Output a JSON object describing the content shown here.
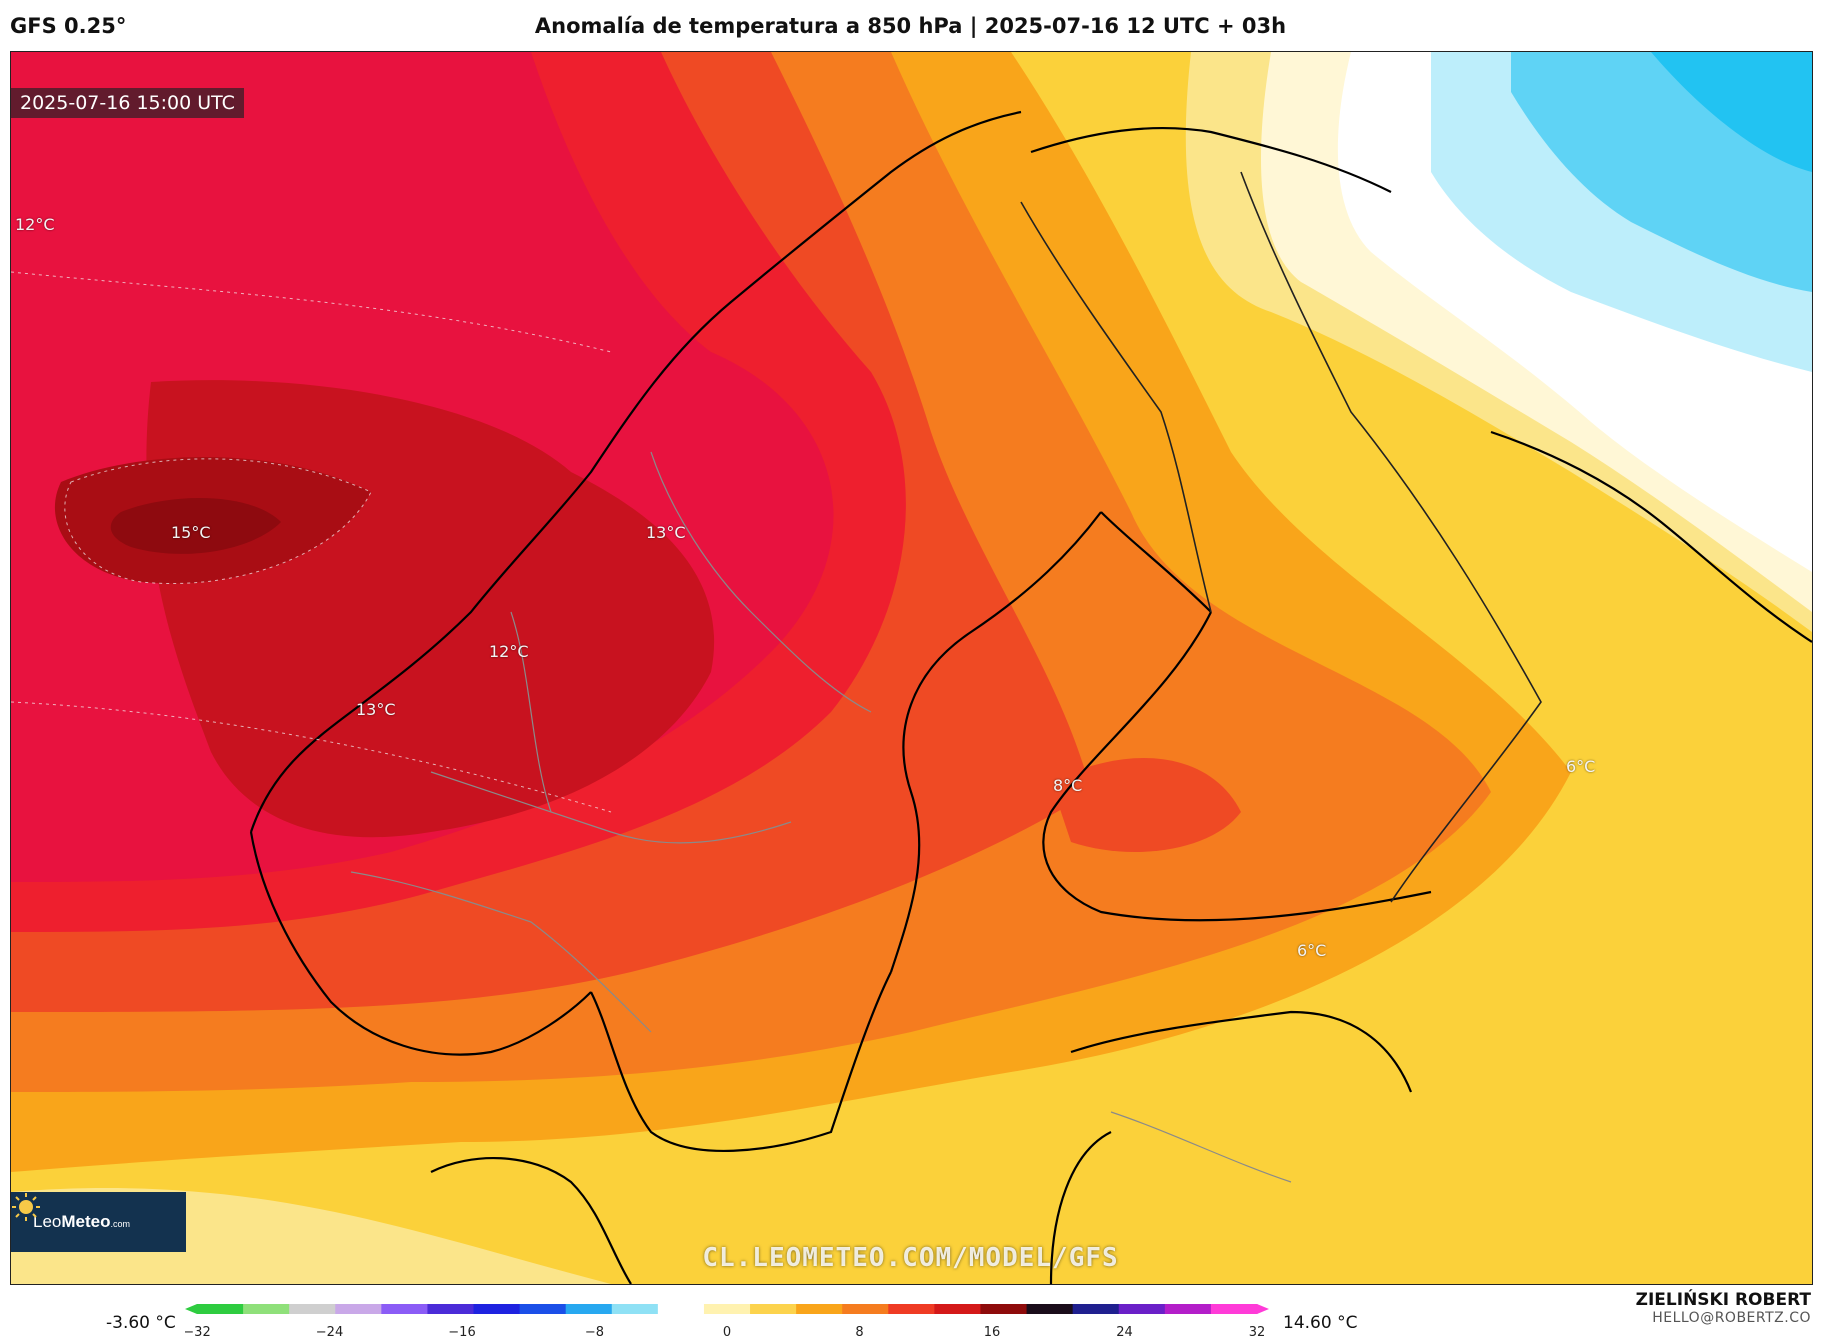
{
  "header": {
    "model": "GFS 0.25°",
    "title": "Anomalía de temperatura a 850 hPa | 2025-07-16 12 UTC + 03h"
  },
  "map": {
    "valid_time": "2025-07-16 15:00 UTC",
    "labels": [
      {
        "id": "label-12-west",
        "text": "12°C"
      },
      {
        "id": "label-15",
        "text": "15°C"
      },
      {
        "id": "label-13-north",
        "text": "13°C"
      },
      {
        "id": "label-12-coast",
        "text": "12°C"
      },
      {
        "id": "label-13-coast",
        "text": "13°C"
      },
      {
        "id": "label-8",
        "text": "8°C"
      },
      {
        "id": "label-6-east",
        "text": "6°C"
      },
      {
        "id": "label-6-south",
        "text": "6°C"
      }
    ],
    "watermark": "CL.LEOMETEO.COM/MODEL/GFS",
    "logo": {
      "brand_light": "Leo",
      "brand_bold": "Meteo",
      "suffix": ".com"
    }
  },
  "colorbar": {
    "min_label": "-3.60 °C",
    "max_label": "14.60 °C",
    "ticks": [
      "−32",
      "−24",
      "−16",
      "−8",
      "0",
      "8",
      "16",
      "24",
      "32"
    ],
    "tick_values": [
      -32,
      -24,
      -16,
      -8,
      0,
      8,
      16,
      24,
      32
    ],
    "range": [
      -32,
      32
    ],
    "colors": [
      "#2ecc40",
      "#8fe07a",
      "#cfcfcf",
      "#c9a8e8",
      "#8b5cf6",
      "#4b2bd8",
      "#1e22e0",
      "#1b4fe8",
      "#27a8f0",
      "#8fe1f5",
      "#ffffff",
      "#fff2b0",
      "#fcd34d",
      "#f9a51a",
      "#f57c1f",
      "#ef3b24",
      "#d41919",
      "#8e0b0b",
      "#1a0d1a",
      "#1f1f8f",
      "#6a20c8",
      "#b31ec9",
      "#ff3bd8"
    ]
  },
  "author": {
    "name": "ZIELIŃSKI ROBERT",
    "email": "HELLO@ROBERTZ.CO"
  }
}
